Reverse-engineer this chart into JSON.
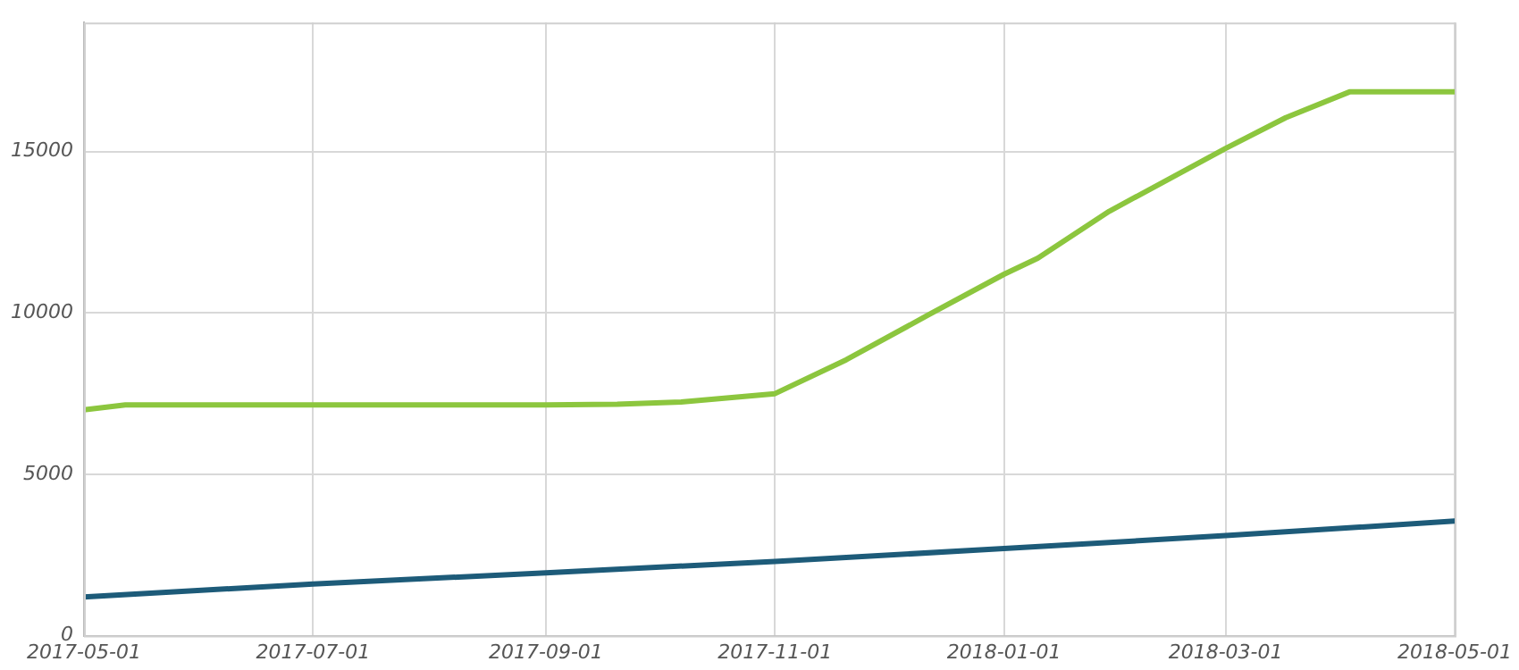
{
  "chart_data": {
    "type": "line",
    "xlim": [
      "2017-05-01",
      "2018-05-01"
    ],
    "xticks": [
      "2017-05-01",
      "2017-07-01",
      "2017-09-01",
      "2017-11-01",
      "2018-01-01",
      "2018-03-01",
      "2018-05-01"
    ],
    "ylim": [
      0,
      19000
    ],
    "yticks": [
      0,
      5000,
      10000,
      15000
    ],
    "grid": true,
    "marker": "none",
    "line_style": "solid",
    "series": [
      {
        "color": "#8cc63e",
        "x": [
          "2017-05-01",
          "2017-05-12",
          "2017-07-01",
          "2017-09-01",
          "2017-09-20",
          "2017-10-07",
          "2017-11-01",
          "2017-11-20",
          "2017-12-12",
          "2018-01-01",
          "2018-01-10",
          "2018-01-29",
          "2018-03-01",
          "2018-03-17",
          "2018-04-03",
          "2018-05-01"
        ],
        "values": [
          7000,
          7150,
          7150,
          7150,
          7170,
          7240,
          7500,
          8550,
          9950,
          11200,
          11700,
          13150,
          15100,
          16050,
          16850,
          16850
        ]
      },
      {
        "color": "#1d5b79",
        "x": [
          "2017-05-01",
          "2017-07-01",
          "2017-09-01",
          "2017-11-01",
          "2018-01-01",
          "2018-03-01",
          "2018-05-01"
        ],
        "values": [
          1200,
          1600,
          1950,
          2300,
          2700,
          3100,
          3550
        ]
      }
    ]
  }
}
